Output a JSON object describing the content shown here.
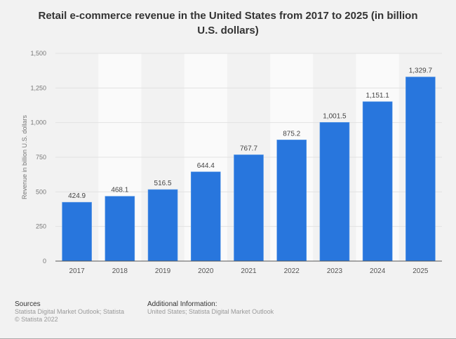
{
  "chart_data": {
    "type": "bar",
    "title": "Retail e-commerce revenue in the United States from 2017 to 2025 (in billion U.S. dollars)",
    "xlabel": "",
    "ylabel": "Revenue in billion U.S. dollars",
    "categories": [
      "2017",
      "2018",
      "2019",
      "2020",
      "2021",
      "2022",
      "2023",
      "2024",
      "2025"
    ],
    "values": [
      424.9,
      468.1,
      516.5,
      644.4,
      767.7,
      875.2,
      1001.5,
      1151.1,
      1329.7
    ],
    "value_labels": [
      "424.9",
      "468.1",
      "516.5",
      "644.4",
      "767.7",
      "875.2",
      "1,001.5",
      "1,151.1",
      "1,329.7"
    ],
    "ylim": [
      0,
      1500
    ],
    "yticks": [
      0,
      250,
      500,
      750,
      1000,
      1250,
      1500
    ],
    "ytick_labels": [
      "0",
      "250",
      "500",
      "750",
      "1,000",
      "1,250",
      "1,500"
    ],
    "grid": true,
    "bar_color": "#2876dd"
  },
  "footer": {
    "sources_heading": "Sources",
    "sources_text": "Statista Digital Market Outlook; Statista",
    "copyright": "© Statista 2022",
    "additional_heading": "Additional Information:",
    "additional_text": "United States; Statista Digital Market Outlook"
  }
}
